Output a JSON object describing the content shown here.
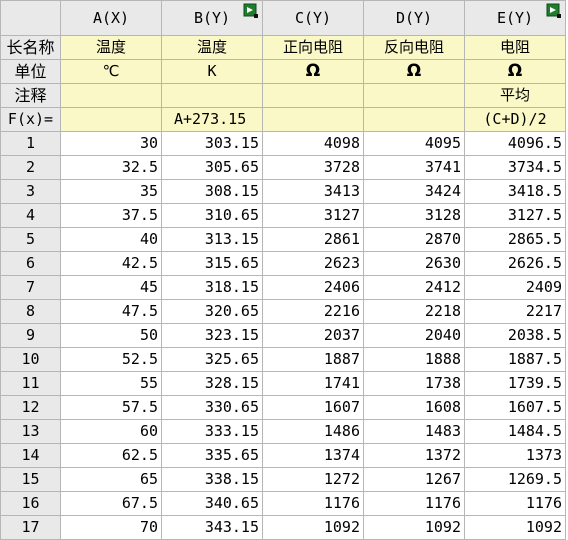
{
  "columns": [
    {
      "header": "A(X)"
    },
    {
      "header": "B(Y)",
      "has_icon": true
    },
    {
      "header": "C(Y)"
    },
    {
      "header": "D(Y)"
    },
    {
      "header": "E(Y)",
      "has_icon": true
    }
  ],
  "meta_labels": {
    "long_name": "长名称",
    "units": "单位",
    "comments": "注释",
    "formula": "F(x)="
  },
  "long_names": [
    "温度",
    "温度",
    "正向电阻",
    "反向电阻",
    "电阻"
  ],
  "units": [
    "℃",
    "K",
    "Ω",
    "Ω",
    "Ω"
  ],
  "comments": [
    "",
    "",
    "",
    "",
    "平均"
  ],
  "formulas": [
    "",
    "A+273.15",
    "",
    "",
    "(C+D)/2"
  ],
  "rows": [
    {
      "n": "1",
      "cells": [
        "30",
        "303.15",
        "4098",
        "4095",
        "4096.5"
      ]
    },
    {
      "n": "2",
      "cells": [
        "32.5",
        "305.65",
        "3728",
        "3741",
        "3734.5"
      ]
    },
    {
      "n": "3",
      "cells": [
        "35",
        "308.15",
        "3413",
        "3424",
        "3418.5"
      ]
    },
    {
      "n": "4",
      "cells": [
        "37.5",
        "310.65",
        "3127",
        "3128",
        "3127.5"
      ]
    },
    {
      "n": "5",
      "cells": [
        "40",
        "313.15",
        "2861",
        "2870",
        "2865.5"
      ]
    },
    {
      "n": "6",
      "cells": [
        "42.5",
        "315.65",
        "2623",
        "2630",
        "2626.5"
      ]
    },
    {
      "n": "7",
      "cells": [
        "45",
        "318.15",
        "2406",
        "2412",
        "2409"
      ]
    },
    {
      "n": "8",
      "cells": [
        "47.5",
        "320.65",
        "2216",
        "2218",
        "2217"
      ]
    },
    {
      "n": "9",
      "cells": [
        "50",
        "323.15",
        "2037",
        "2040",
        "2038.5"
      ]
    },
    {
      "n": "10",
      "cells": [
        "52.5",
        "325.65",
        "1887",
        "1888",
        "1887.5"
      ]
    },
    {
      "n": "11",
      "cells": [
        "55",
        "328.15",
        "1741",
        "1738",
        "1739.5"
      ]
    },
    {
      "n": "12",
      "cells": [
        "57.5",
        "330.65",
        "1607",
        "1608",
        "1607.5"
      ]
    },
    {
      "n": "13",
      "cells": [
        "60",
        "333.15",
        "1486",
        "1483",
        "1484.5"
      ]
    },
    {
      "n": "14",
      "cells": [
        "62.5",
        "335.65",
        "1374",
        "1372",
        "1373"
      ]
    },
    {
      "n": "15",
      "cells": [
        "65",
        "338.15",
        "1272",
        "1267",
        "1269.5"
      ]
    },
    {
      "n": "16",
      "cells": [
        "67.5",
        "340.65",
        "1176",
        "1176",
        "1176"
      ]
    },
    {
      "n": "17",
      "cells": [
        "70",
        "343.15",
        "1092",
        "1092",
        "1092"
      ]
    }
  ]
}
